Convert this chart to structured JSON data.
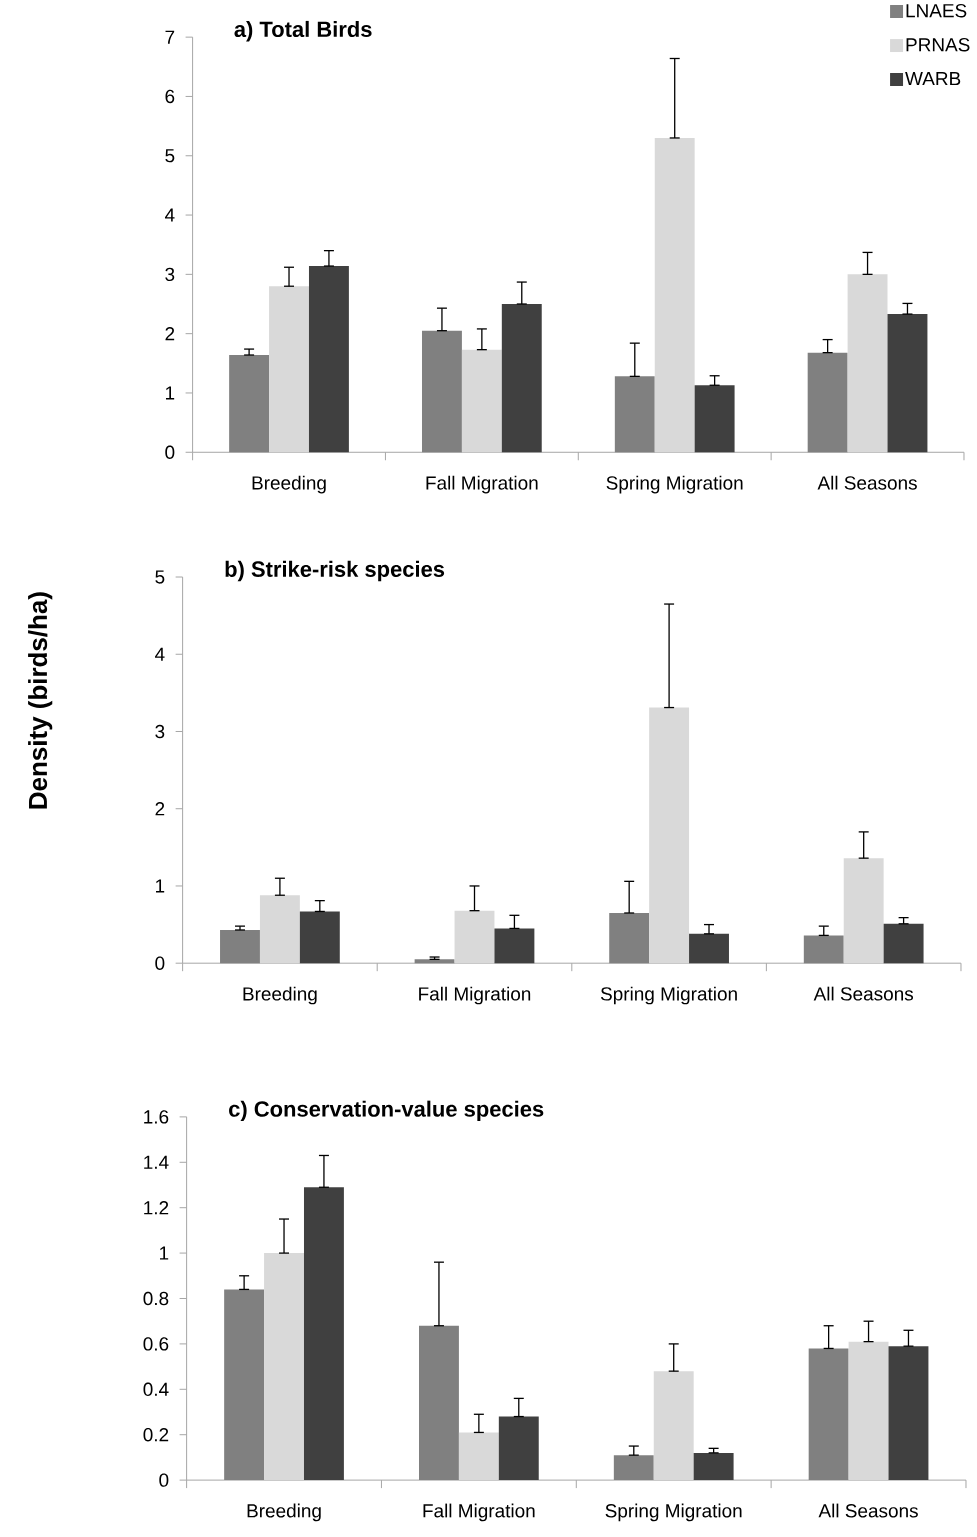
{
  "chart_data": [
    {
      "type": "bar",
      "title": "a) Total Birds",
      "categories": [
        "Breeding",
        "Fall Migration",
        "Spring Migration",
        "All Seasons"
      ],
      "ylim": [
        0,
        7
      ],
      "yticks": [
        0,
        1,
        2,
        3,
        4,
        5,
        6,
        7
      ],
      "legend": "top right",
      "series": [
        {
          "name": "LNAES",
          "color": "#808080",
          "values": [
            1.64,
            2.05,
            1.28,
            1.68
          ],
          "errors": [
            [
              1.64,
              1.74
            ],
            [
              2.05,
              2.43
            ],
            [
              1.28,
              1.84
            ],
            [
              1.68,
              1.9
            ]
          ]
        },
        {
          "name": "PRNAS",
          "color": "#d9d9d9",
          "values": [
            2.8,
            1.73,
            5.3,
            3.0
          ],
          "errors": [
            [
              2.8,
              3.12
            ],
            [
              1.73,
              2.08
            ],
            [
              5.3,
              6.64
            ],
            [
              3.0,
              3.37
            ]
          ]
        },
        {
          "name": "WARB",
          "color": "#404040",
          "values": [
            3.14,
            2.5,
            1.13,
            2.33
          ],
          "errors": [
            [
              3.14,
              3.4
            ],
            [
              2.5,
              2.87
            ],
            [
              1.13,
              1.29
            ],
            [
              2.33,
              2.51
            ]
          ]
        }
      ]
    },
    {
      "type": "bar",
      "title": "b) Strike-risk species",
      "ylabel": "Density (birds/ha)",
      "categories": [
        "Breeding",
        "Fall Migration",
        "Spring Migration",
        "All Seasons"
      ],
      "ylim": [
        0,
        5
      ],
      "yticks": [
        0,
        1,
        2,
        3,
        4,
        5
      ],
      "series": [
        {
          "color": "#808080",
          "values": [
            0.43,
            0.05,
            0.65,
            0.36
          ],
          "errors": [
            [
              0.43,
              0.48
            ],
            [
              0.05,
              0.08
            ],
            [
              0.65,
              1.06
            ],
            [
              0.36,
              0.48
            ]
          ]
        },
        {
          "color": "#d9d9d9",
          "values": [
            0.88,
            0.68,
            3.31,
            1.36
          ],
          "errors": [
            [
              0.88,
              1.1
            ],
            [
              0.68,
              1.0
            ],
            [
              3.31,
              4.65
            ],
            [
              1.36,
              1.7
            ]
          ]
        },
        {
          "color": "#404040",
          "values": [
            0.67,
            0.45,
            0.38,
            0.51
          ],
          "errors": [
            [
              0.67,
              0.81
            ],
            [
              0.45,
              0.62
            ],
            [
              0.38,
              0.5
            ],
            [
              0.51,
              0.59
            ]
          ]
        }
      ]
    },
    {
      "type": "bar",
      "title": "c) Conservation-value species",
      "categories": [
        "Breeding",
        "Fall Migration",
        "Spring Migration",
        "All Seasons"
      ],
      "ylim": [
        0,
        1.6
      ],
      "yticks": [
        0,
        0.2,
        0.4,
        0.6,
        0.8,
        1,
        1.2,
        1.4,
        1.6
      ],
      "series": [
        {
          "color": "#808080",
          "values": [
            0.84,
            0.68,
            0.11,
            0.58
          ],
          "errors": [
            [
              0.84,
              0.9
            ],
            [
              0.68,
              0.96
            ],
            [
              0.11,
              0.15
            ],
            [
              0.58,
              0.68
            ]
          ]
        },
        {
          "color": "#d9d9d9",
          "values": [
            1.0,
            0.21,
            0.48,
            0.61
          ],
          "errors": [
            [
              1.0,
              1.15
            ],
            [
              0.21,
              0.29
            ],
            [
              0.48,
              0.6
            ],
            [
              0.61,
              0.7
            ]
          ]
        },
        {
          "color": "#404040",
          "values": [
            1.29,
            0.28,
            0.12,
            0.59
          ],
          "errors": [
            [
              1.29,
              1.43
            ],
            [
              0.28,
              0.36
            ],
            [
              0.12,
              0.14
            ],
            [
              0.59,
              0.66
            ]
          ]
        }
      ]
    }
  ]
}
